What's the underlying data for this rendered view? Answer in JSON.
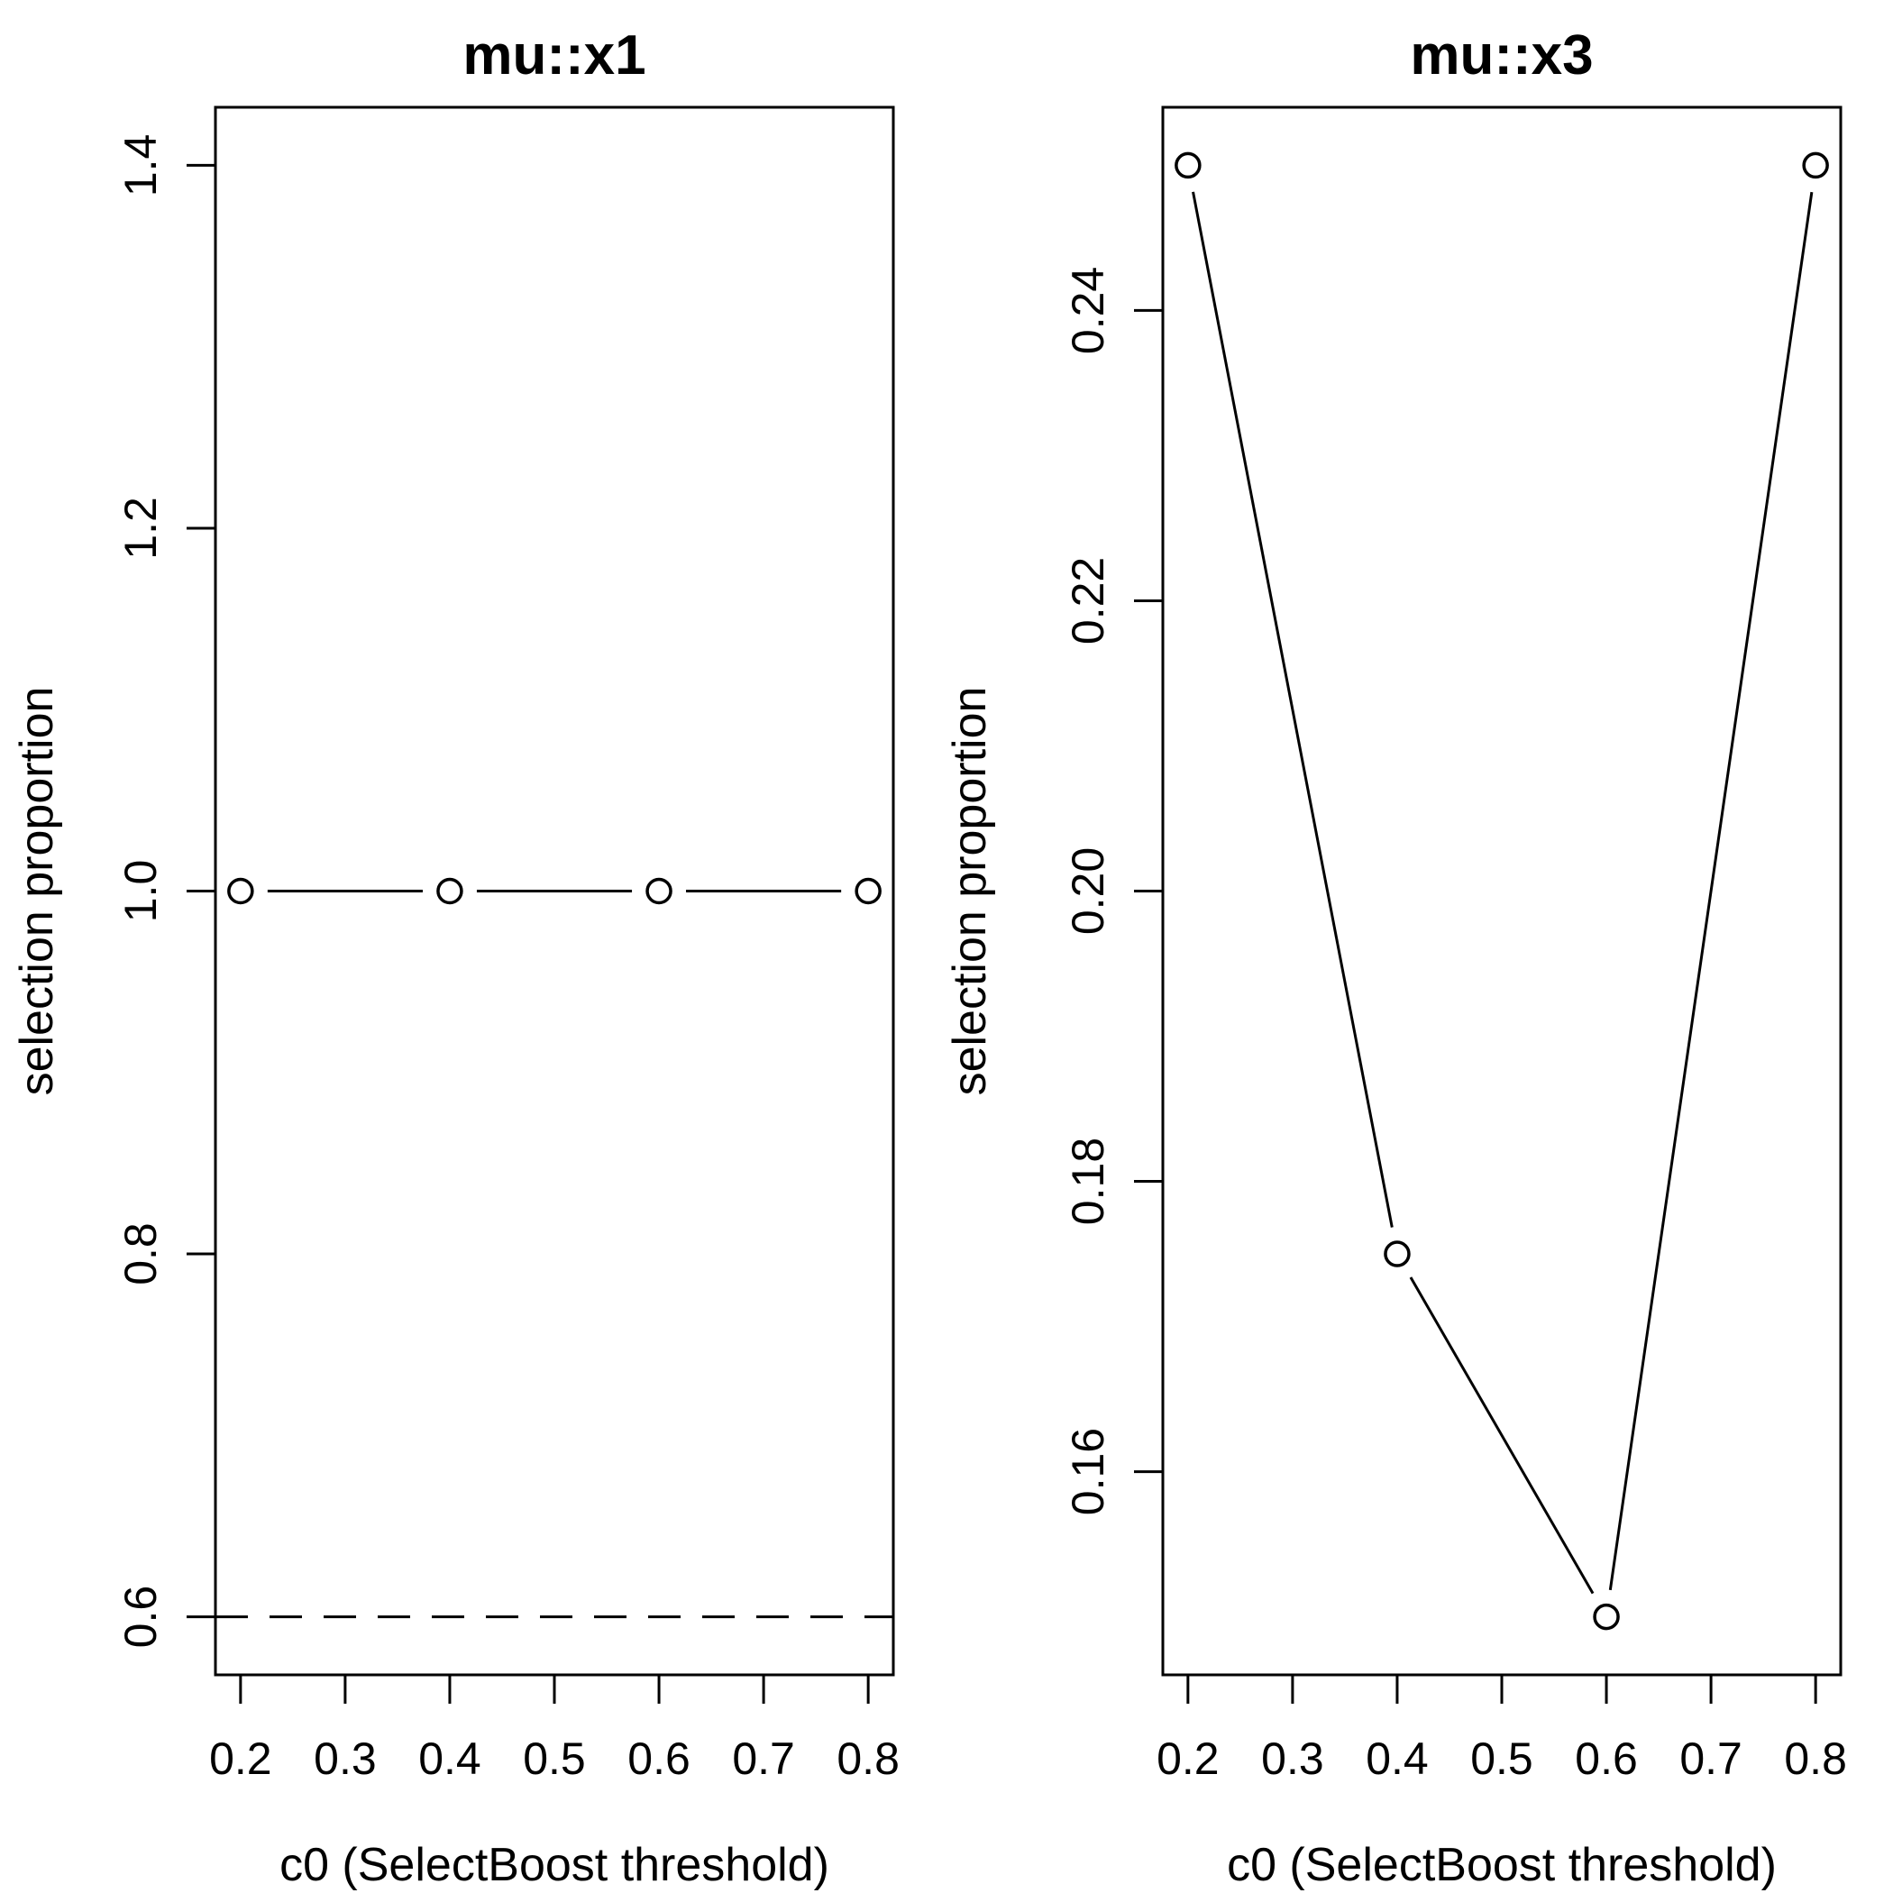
{
  "figure": {
    "background": "#ffffff",
    "foreground": "#000000"
  },
  "chart_data": [
    {
      "type": "line",
      "title": "mu::x1",
      "xlabel": "c0 (SelectBoost threshold)",
      "ylabel": "selection proportion",
      "x": [
        0.2,
        0.4,
        0.6,
        0.8
      ],
      "y": [
        1.0,
        1.0,
        1.0,
        1.0
      ],
      "marker": "open-circle",
      "line_type": "segments-between-points",
      "xlim": [
        0.176,
        0.824
      ],
      "ylim": [
        0.568,
        1.432
      ],
      "xticks": [
        0.2,
        0.3,
        0.4,
        0.5,
        0.6,
        0.7,
        0.8
      ],
      "xtick_labels": [
        "0.2",
        "0.3",
        "0.4",
        "0.5",
        "0.6",
        "0.7",
        "0.8"
      ],
      "yticks": [
        0.6,
        0.8,
        1.0,
        1.2,
        1.4
      ],
      "ytick_labels": [
        "0.6",
        "0.8",
        "1.0",
        "1.2",
        "1.4"
      ],
      "hline_dashed": 0.6,
      "grid": false,
      "legend": null
    },
    {
      "type": "line",
      "title": "mu::x3",
      "xlabel": "c0 (SelectBoost threshold)",
      "ylabel": "selection proportion",
      "x": [
        0.2,
        0.4,
        0.6,
        0.8
      ],
      "y": [
        0.25,
        0.175,
        0.15,
        0.25
      ],
      "marker": "open-circle",
      "line_type": "segments-between-points",
      "xlim": [
        0.176,
        0.824
      ],
      "ylim": [
        0.146,
        0.254
      ],
      "xticks": [
        0.2,
        0.3,
        0.4,
        0.5,
        0.6,
        0.7,
        0.8
      ],
      "xtick_labels": [
        "0.2",
        "0.3",
        "0.4",
        "0.5",
        "0.6",
        "0.7",
        "0.8"
      ],
      "yticks": [
        0.16,
        0.18,
        0.2,
        0.22,
        0.24
      ],
      "ytick_labels": [
        "0.16",
        "0.18",
        "0.20",
        "0.22",
        "0.24"
      ],
      "hline_dashed": null,
      "grid": false,
      "legend": null
    }
  ]
}
